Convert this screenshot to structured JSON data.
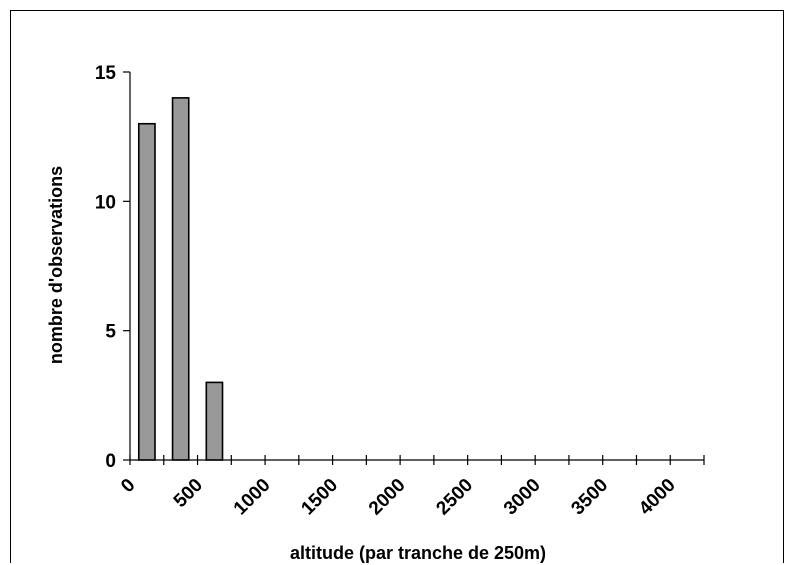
{
  "chart_data": {
    "type": "bar",
    "xlabel": "altitude (par tranche de 250m)",
    "ylabel": "nombre d'observations",
    "x_tick_labels": [
      "0",
      "500",
      "1000",
      "1500",
      "2000",
      "2500",
      "3000",
      "3500",
      "4000"
    ],
    "y_tick_labels": [
      "0",
      "5",
      "10",
      "15"
    ],
    "ylim": [
      0,
      15
    ],
    "xlim": [
      0,
      4250
    ],
    "bin_width": 250,
    "bar_color": "#999999",
    "bars": [
      {
        "bin_start": 0,
        "value": 13
      },
      {
        "bin_start": 250,
        "value": 14
      },
      {
        "bin_start": 500,
        "value": 3
      }
    ],
    "grid": false,
    "legend": "none"
  }
}
